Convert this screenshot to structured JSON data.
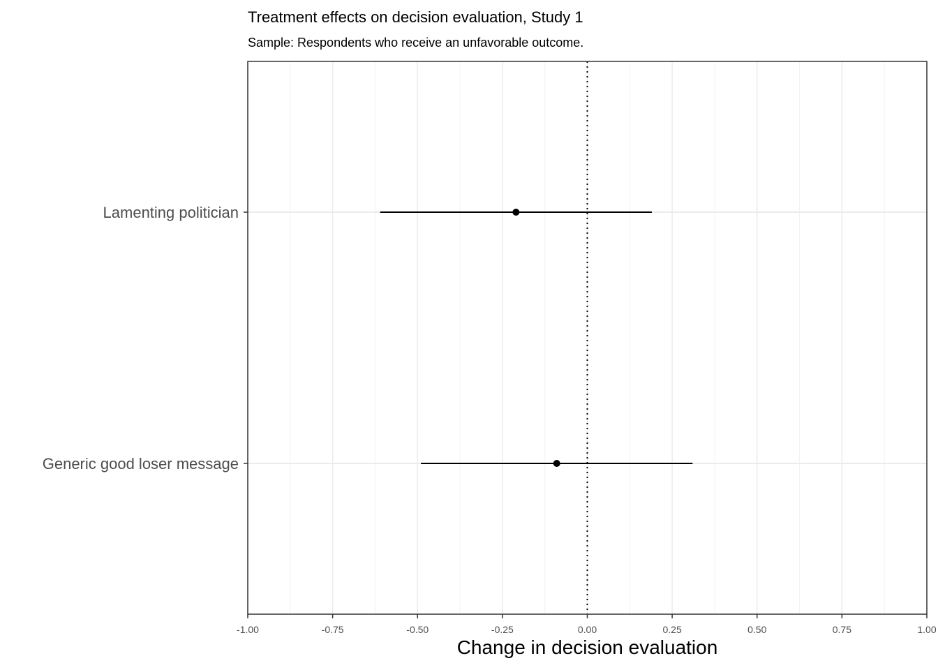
{
  "chart_data": {
    "type": "forest",
    "title": "Treatment effects on decision evaluation, Study 1",
    "subtitle": "Sample: Respondents who receive an unfavorable outcome.",
    "xlabel": "Change in decision evaluation",
    "ylabel": "",
    "xlim": [
      -1.0,
      1.0
    ],
    "x_ticks": [
      -1.0,
      -0.75,
      -0.5,
      -0.25,
      0.0,
      0.25,
      0.5,
      0.75,
      1.0
    ],
    "x_tick_labels": [
      "-1.00",
      "-0.75",
      "-0.50",
      "-0.25",
      "0.00",
      "0.25",
      "0.50",
      "0.75",
      "1.00"
    ],
    "x_minor_ticks": [
      -0.875,
      -0.625,
      -0.375,
      -0.125,
      0.125,
      0.375,
      0.625,
      0.875
    ],
    "reference_line": 0.0,
    "grid": true,
    "categories": [
      "Lamenting politician",
      "Generic good loser message"
    ],
    "estimates": [
      -0.21,
      -0.09
    ],
    "ci_low": [
      -0.61,
      -0.49
    ],
    "ci_high": [
      0.19,
      0.31
    ],
    "colors": {
      "points": "#000000",
      "major_grid": "#ebebeb",
      "minor_grid": "#f2f2f2",
      "axis_text": "#4d4d4d",
      "panel_border": "#333333"
    }
  }
}
